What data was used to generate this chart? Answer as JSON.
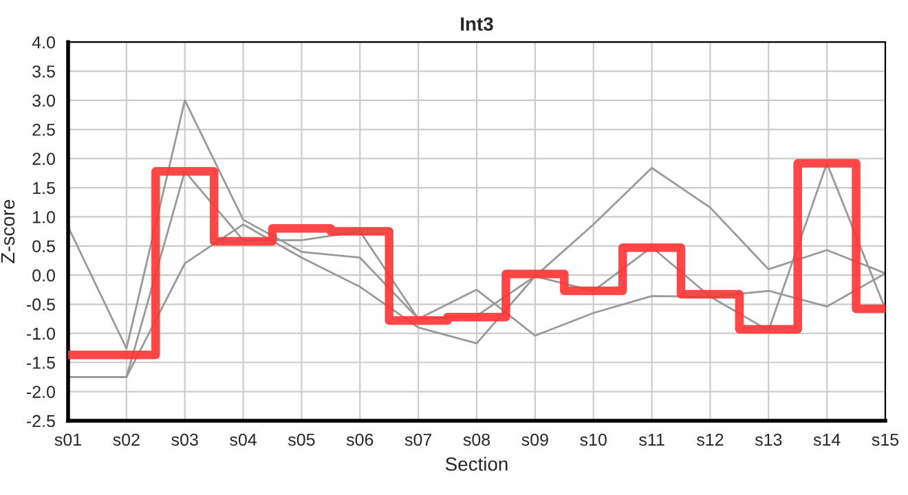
{
  "chart_data": {
    "type": "line",
    "title": "Int3",
    "xlabel": "Section",
    "ylabel": "Z-score",
    "categories": [
      "s01",
      "s02",
      "s03",
      "s04",
      "s05",
      "s06",
      "s07",
      "s08",
      "s09",
      "s10",
      "s11",
      "s12",
      "s13",
      "s14",
      "s15"
    ],
    "series": [
      {
        "color": "#999999",
        "values": [
          0.83,
          -1.26,
          3.0,
          0.95,
          0.4,
          0.3,
          -0.75,
          -0.25,
          -1.04,
          -0.65,
          -0.36,
          -0.37,
          -0.95,
          1.92,
          -0.58
        ]
      },
      {
        "color": "#999999",
        "values": [
          -1.75,
          -1.75,
          1.78,
          0.6,
          0.6,
          0.75,
          -0.75,
          -0.7,
          -0.02,
          -0.27,
          0.48,
          -0.37,
          -0.27,
          -0.54,
          0.03
        ]
      },
      {
        "color": "#999999",
        "values": [
          -1.75,
          -1.75,
          0.2,
          0.87,
          0.3,
          -0.2,
          -0.9,
          -1.17,
          -0.02,
          0.87,
          1.84,
          1.16,
          0.1,
          0.43,
          0.03
        ]
      },
      {
        "type": "step",
        "color": "#ff3333",
        "values": [
          -1.37,
          -1.37,
          1.78,
          0.58,
          0.8,
          0.75,
          -0.78,
          -0.72,
          0.02,
          -0.27,
          0.47,
          -0.33,
          -0.93,
          1.92,
          -0.58
        ]
      }
    ],
    "ylim": [
      -2.5,
      4.0
    ],
    "yticks": [
      {
        "value": -2.5,
        "label": "-2.5"
      },
      {
        "value": -2,
        "label": "-2.0"
      },
      {
        "value": -1.5,
        "label": "-1.5"
      },
      {
        "value": -1,
        "label": "-1.0"
      },
      {
        "value": -0.5,
        "label": "-0.5"
      },
      {
        "value": 0,
        "label": "0.0"
      },
      {
        "value": 0.5,
        "label": "0.5"
      },
      {
        "value": 1,
        "label": "1.0"
      },
      {
        "value": 1.5,
        "label": "1.5"
      },
      {
        "value": 2,
        "label": "2.0"
      },
      {
        "value": 2.5,
        "label": "2.5"
      },
      {
        "value": 3,
        "label": "3.0"
      },
      {
        "value": 3.5,
        "label": "3.5"
      },
      {
        "value": 4,
        "label": "4.0"
      }
    ],
    "grid": true
  }
}
